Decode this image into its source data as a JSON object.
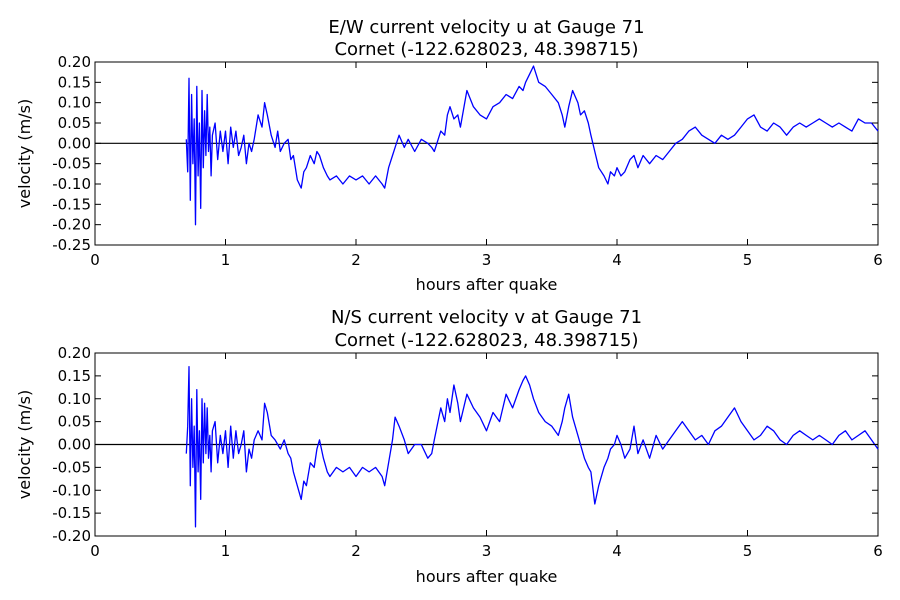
{
  "colors": {
    "line": "#0000ff",
    "zero_line": "#000000",
    "axes": "#000000",
    "background": "#ffffff"
  },
  "chart_data": [
    {
      "type": "line",
      "title": "E/W current velocity u at Gauge 71",
      "subtitle": "Cornet  (-122.628023, 48.398715)",
      "xlabel": "hours after quake",
      "ylabel": "velocity (m/s)",
      "xlim": [
        0,
        6
      ],
      "ylim": [
        -0.25,
        0.2
      ],
      "xticks": [
        "0",
        "1",
        "2",
        "3",
        "4",
        "5",
        "6"
      ],
      "yticks": [
        "-0.25",
        "-0.20",
        "-0.15",
        "-0.10",
        "-0.05",
        "0.00",
        "0.05",
        "0.10",
        "0.15",
        "0.20"
      ],
      "grid": false,
      "reference_line": 0,
      "series": [
        {
          "x": [
            0.7,
            0.71,
            0.72,
            0.73,
            0.74,
            0.75,
            0.76,
            0.77,
            0.78,
            0.79,
            0.8,
            0.81,
            0.82,
            0.83,
            0.84,
            0.85,
            0.86,
            0.87,
            0.88,
            0.89,
            0.9,
            0.92,
            0.94,
            0.96,
            0.98,
            1.0,
            1.02,
            1.04,
            1.06,
            1.08,
            1.1,
            1.12,
            1.14,
            1.16,
            1.18,
            1.2,
            1.22,
            1.25,
            1.28,
            1.3,
            1.32,
            1.35,
            1.38,
            1.4,
            1.42,
            1.45,
            1.48,
            1.5,
            1.52,
            1.55,
            1.58,
            1.6,
            1.62,
            1.65,
            1.68,
            1.7,
            1.72,
            1.75,
            1.78,
            1.8,
            1.85,
            1.9,
            1.95,
            2.0,
            2.05,
            2.1,
            2.15,
            2.2,
            2.22,
            2.25,
            2.28,
            2.3,
            2.33,
            2.37,
            2.4,
            2.45,
            2.5,
            2.55,
            2.58,
            2.6,
            2.65,
            2.68,
            2.7,
            2.72,
            2.75,
            2.78,
            2.8,
            2.85,
            2.9,
            2.95,
            3.0,
            3.05,
            3.1,
            3.15,
            3.2,
            3.25,
            3.28,
            3.3,
            3.33,
            3.36,
            3.4,
            3.45,
            3.5,
            3.55,
            3.58,
            3.6,
            3.63,
            3.66,
            3.7,
            3.72,
            3.75,
            3.78,
            3.8,
            3.83,
            3.86,
            3.9,
            3.93,
            3.95,
            3.98,
            4.0,
            4.03,
            4.06,
            4.1,
            4.13,
            4.16,
            4.2,
            4.25,
            4.3,
            4.35,
            4.4,
            4.45,
            4.5,
            4.55,
            4.6,
            4.65,
            4.7,
            4.75,
            4.8,
            4.85,
            4.9,
            4.95,
            5.0,
            5.05,
            5.1,
            5.15,
            5.2,
            5.25,
            5.3,
            5.35,
            5.4,
            5.45,
            5.5,
            5.55,
            5.6,
            5.65,
            5.7,
            5.75,
            5.8,
            5.85,
            5.9,
            5.95,
            6.0
          ],
          "y": [
            0.01,
            -0.07,
            0.16,
            -0.14,
            0.12,
            -0.05,
            0.06,
            -0.2,
            0.14,
            -0.08,
            0.05,
            -0.16,
            0.13,
            -0.06,
            0.08,
            -0.03,
            0.12,
            -0.02,
            0.04,
            -0.08,
            0.02,
            0.05,
            -0.04,
            0.03,
            -0.02,
            0.03,
            -0.05,
            0.04,
            -0.01,
            0.03,
            -0.03,
            -0.01,
            0.02,
            -0.05,
            0.0,
            -0.02,
            0.01,
            0.07,
            0.04,
            0.1,
            0.07,
            0.02,
            -0.01,
            0.03,
            -0.02,
            0.0,
            0.01,
            -0.04,
            -0.03,
            -0.09,
            -0.11,
            -0.07,
            -0.06,
            -0.03,
            -0.05,
            -0.02,
            -0.03,
            -0.06,
            -0.08,
            -0.09,
            -0.08,
            -0.1,
            -0.08,
            -0.09,
            -0.08,
            -0.1,
            -0.08,
            -0.1,
            -0.11,
            -0.06,
            -0.03,
            -0.01,
            0.02,
            -0.01,
            0.01,
            -0.02,
            0.01,
            0.0,
            -0.01,
            -0.02,
            0.03,
            0.02,
            0.07,
            0.09,
            0.06,
            0.07,
            0.04,
            0.13,
            0.09,
            0.07,
            0.06,
            0.09,
            0.1,
            0.12,
            0.11,
            0.14,
            0.13,
            0.15,
            0.17,
            0.19,
            0.15,
            0.14,
            0.12,
            0.1,
            0.07,
            0.04,
            0.09,
            0.13,
            0.1,
            0.07,
            0.08,
            0.05,
            0.02,
            -0.02,
            -0.06,
            -0.08,
            -0.1,
            -0.07,
            -0.08,
            -0.06,
            -0.08,
            -0.07,
            -0.04,
            -0.03,
            -0.06,
            -0.03,
            -0.05,
            -0.03,
            -0.04,
            -0.02,
            0.0,
            0.01,
            0.03,
            0.04,
            0.02,
            0.01,
            0.0,
            0.02,
            0.01,
            0.02,
            0.04,
            0.06,
            0.07,
            0.04,
            0.03,
            0.05,
            0.04,
            0.02,
            0.04,
            0.05,
            0.04,
            0.05,
            0.06,
            0.05,
            0.04,
            0.05,
            0.04,
            0.03,
            0.06,
            0.05,
            0.05,
            0.03
          ]
        }
      ]
    },
    {
      "type": "line",
      "title": "N/S current velocity v at Gauge 71",
      "subtitle": "Cornet  (-122.628023, 48.398715)",
      "xlabel": "hours after quake",
      "ylabel": "velocity (m/s)",
      "xlim": [
        0,
        6
      ],
      "ylim": [
        -0.2,
        0.2
      ],
      "xticks": [
        "0",
        "1",
        "2",
        "3",
        "4",
        "5",
        "6"
      ],
      "yticks": [
        "-0.20",
        "-0.15",
        "-0.10",
        "-0.05",
        "0.00",
        "0.05",
        "0.10",
        "0.15",
        "0.20"
      ],
      "grid": false,
      "reference_line": 0,
      "series": [
        {
          "x": [
            0.7,
            0.71,
            0.72,
            0.73,
            0.74,
            0.75,
            0.76,
            0.77,
            0.78,
            0.79,
            0.8,
            0.81,
            0.82,
            0.83,
            0.84,
            0.85,
            0.86,
            0.87,
            0.88,
            0.89,
            0.9,
            0.92,
            0.94,
            0.96,
            0.98,
            1.0,
            1.02,
            1.04,
            1.06,
            1.08,
            1.1,
            1.12,
            1.14,
            1.16,
            1.18,
            1.2,
            1.22,
            1.25,
            1.28,
            1.3,
            1.32,
            1.35,
            1.38,
            1.4,
            1.42,
            1.45,
            1.48,
            1.5,
            1.52,
            1.55,
            1.58,
            1.6,
            1.62,
            1.65,
            1.68,
            1.7,
            1.72,
            1.75,
            1.78,
            1.8,
            1.85,
            1.9,
            1.95,
            2.0,
            2.05,
            2.1,
            2.15,
            2.2,
            2.22,
            2.25,
            2.28,
            2.3,
            2.33,
            2.37,
            2.4,
            2.45,
            2.5,
            2.55,
            2.58,
            2.6,
            2.65,
            2.68,
            2.7,
            2.72,
            2.75,
            2.78,
            2.8,
            2.85,
            2.9,
            2.95,
            3.0,
            3.05,
            3.1,
            3.15,
            3.2,
            3.25,
            3.28,
            3.3,
            3.33,
            3.36,
            3.4,
            3.45,
            3.5,
            3.55,
            3.58,
            3.6,
            3.63,
            3.66,
            3.7,
            3.72,
            3.75,
            3.78,
            3.8,
            3.83,
            3.86,
            3.9,
            3.93,
            3.95,
            3.98,
            4.0,
            4.03,
            4.06,
            4.1,
            4.13,
            4.16,
            4.2,
            4.25,
            4.3,
            4.35,
            4.4,
            4.45,
            4.5,
            4.55,
            4.6,
            4.65,
            4.7,
            4.75,
            4.8,
            4.85,
            4.9,
            4.95,
            5.0,
            5.05,
            5.1,
            5.15,
            5.2,
            5.25,
            5.3,
            5.35,
            5.4,
            5.45,
            5.5,
            5.55,
            5.6,
            5.65,
            5.7,
            5.75,
            5.8,
            5.85,
            5.9,
            5.95,
            6.0
          ],
          "y": [
            -0.02,
            0.04,
            0.17,
            -0.09,
            0.1,
            -0.05,
            0.04,
            -0.18,
            0.12,
            -0.06,
            0.03,
            -0.12,
            0.1,
            -0.04,
            0.09,
            -0.02,
            0.08,
            -0.03,
            0.02,
            -0.06,
            0.03,
            0.05,
            -0.04,
            0.02,
            -0.02,
            0.03,
            -0.05,
            0.04,
            -0.03,
            0.03,
            -0.02,
            0.0,
            0.03,
            -0.06,
            -0.01,
            -0.03,
            0.01,
            0.03,
            0.01,
            0.09,
            0.07,
            0.02,
            0.01,
            0.0,
            -0.01,
            0.01,
            -0.02,
            -0.03,
            -0.06,
            -0.09,
            -0.12,
            -0.08,
            -0.09,
            -0.04,
            -0.05,
            -0.01,
            0.01,
            -0.03,
            -0.06,
            -0.07,
            -0.05,
            -0.06,
            -0.05,
            -0.07,
            -0.05,
            -0.06,
            -0.05,
            -0.07,
            -0.09,
            -0.04,
            0.01,
            0.06,
            0.04,
            0.01,
            -0.02,
            0.0,
            0.0,
            -0.03,
            -0.02,
            0.01,
            0.08,
            0.05,
            0.1,
            0.07,
            0.13,
            0.09,
            0.05,
            0.11,
            0.08,
            0.06,
            0.03,
            0.07,
            0.05,
            0.11,
            0.08,
            0.12,
            0.14,
            0.15,
            0.13,
            0.1,
            0.07,
            0.05,
            0.04,
            0.02,
            0.05,
            0.08,
            0.11,
            0.06,
            0.02,
            0.0,
            -0.03,
            -0.05,
            -0.06,
            -0.13,
            -0.09,
            -0.05,
            -0.03,
            -0.01,
            0.0,
            0.02,
            0.0,
            -0.03,
            -0.01,
            0.04,
            -0.02,
            0.01,
            -0.03,
            0.02,
            -0.01,
            0.01,
            0.03,
            0.05,
            0.03,
            0.01,
            0.02,
            0.0,
            0.03,
            0.04,
            0.06,
            0.08,
            0.05,
            0.03,
            0.01,
            0.02,
            0.04,
            0.03,
            0.01,
            0.0,
            0.02,
            0.03,
            0.02,
            0.01,
            0.02,
            0.01,
            0.0,
            0.02,
            0.03,
            0.01,
            0.02,
            0.03,
            0.01,
            -0.01
          ]
        }
      ]
    }
  ]
}
